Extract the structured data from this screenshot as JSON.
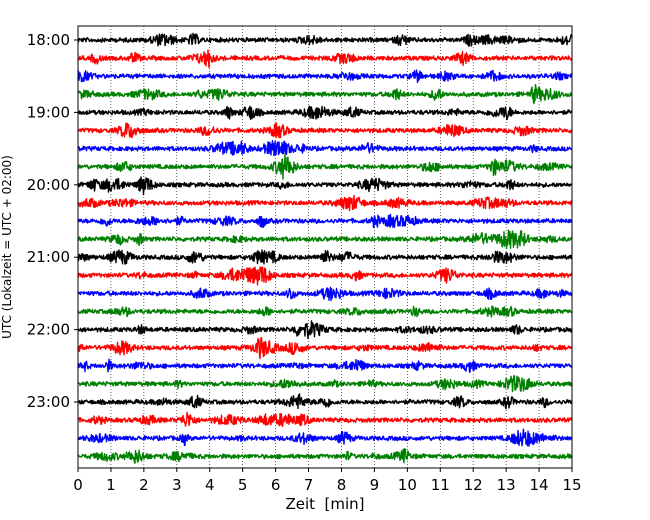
{
  "chart_data": {
    "type": "line",
    "title": "",
    "xlabel": "Zeit  [min]",
    "ylabel": "UTC (Lokalzeit = UTC + 02:00)",
    "xlim": [
      0,
      15
    ],
    "x_ticks": [
      0,
      1,
      2,
      3,
      4,
      5,
      6,
      7,
      8,
      9,
      10,
      11,
      12,
      13,
      14,
      15
    ],
    "y_tick_labels": [
      "18:00",
      "19:00",
      "20:00",
      "21:00",
      "22:00",
      "23:00"
    ],
    "trace_colors": [
      "#000000",
      "#ff0000",
      "#0000ff",
      "#008000"
    ],
    "traces": [
      "18:00",
      "18:15",
      "18:30",
      "18:45",
      "19:00",
      "19:15",
      "19:30",
      "19:45",
      "20:00",
      "20:15",
      "20:30",
      "20:45",
      "21:00",
      "21:15",
      "21:30",
      "21:45",
      "22:00",
      "22:15",
      "22:30",
      "22:45",
      "23:00",
      "23:15",
      "23:30",
      "23:45"
    ],
    "grid": "vertical dotted at each minute",
    "legend": "none"
  }
}
